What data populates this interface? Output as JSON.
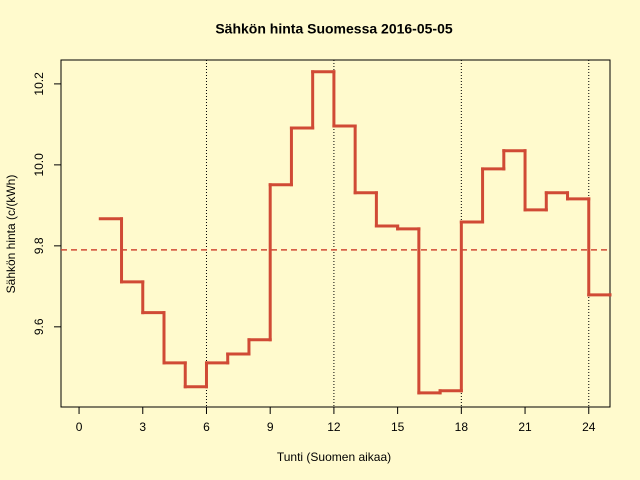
{
  "chart_data": {
    "type": "step",
    "title": "Sähkön hinta Suomessa 2016-05-05",
    "xlabel": "Tunti (Suomen aikaa)",
    "ylabel": "Sähkön hinta (c/(kWh)",
    "x": [
      1,
      2,
      3,
      4,
      5,
      6,
      7,
      8,
      9,
      10,
      11,
      12,
      13,
      14,
      15,
      16,
      17,
      18,
      19,
      20,
      21,
      22,
      23,
      24,
      25
    ],
    "values": [
      9.867,
      9.711,
      9.635,
      9.511,
      9.452,
      9.511,
      9.533,
      9.568,
      9.951,
      10.091,
      10.23,
      10.096,
      9.931,
      9.849,
      9.842,
      9.437,
      9.442,
      9.859,
      9.99,
      10.035,
      9.889,
      9.931,
      9.916,
      9.679,
      9.679
    ],
    "color": "#d04a35",
    "mean": 9.79,
    "mean_color": "#d04a35",
    "vlines": [
      6,
      12,
      18,
      24
    ],
    "xlim": [
      -0.85,
      25
    ],
    "ylim": [
      9.402,
      10.259
    ],
    "xticks": [
      0,
      3,
      6,
      9,
      12,
      15,
      18,
      21,
      24
    ],
    "yticks": [
      9.6,
      9.8,
      {
        "value": 10.0,
        "label": "10.0"
      },
      10.2
    ]
  }
}
